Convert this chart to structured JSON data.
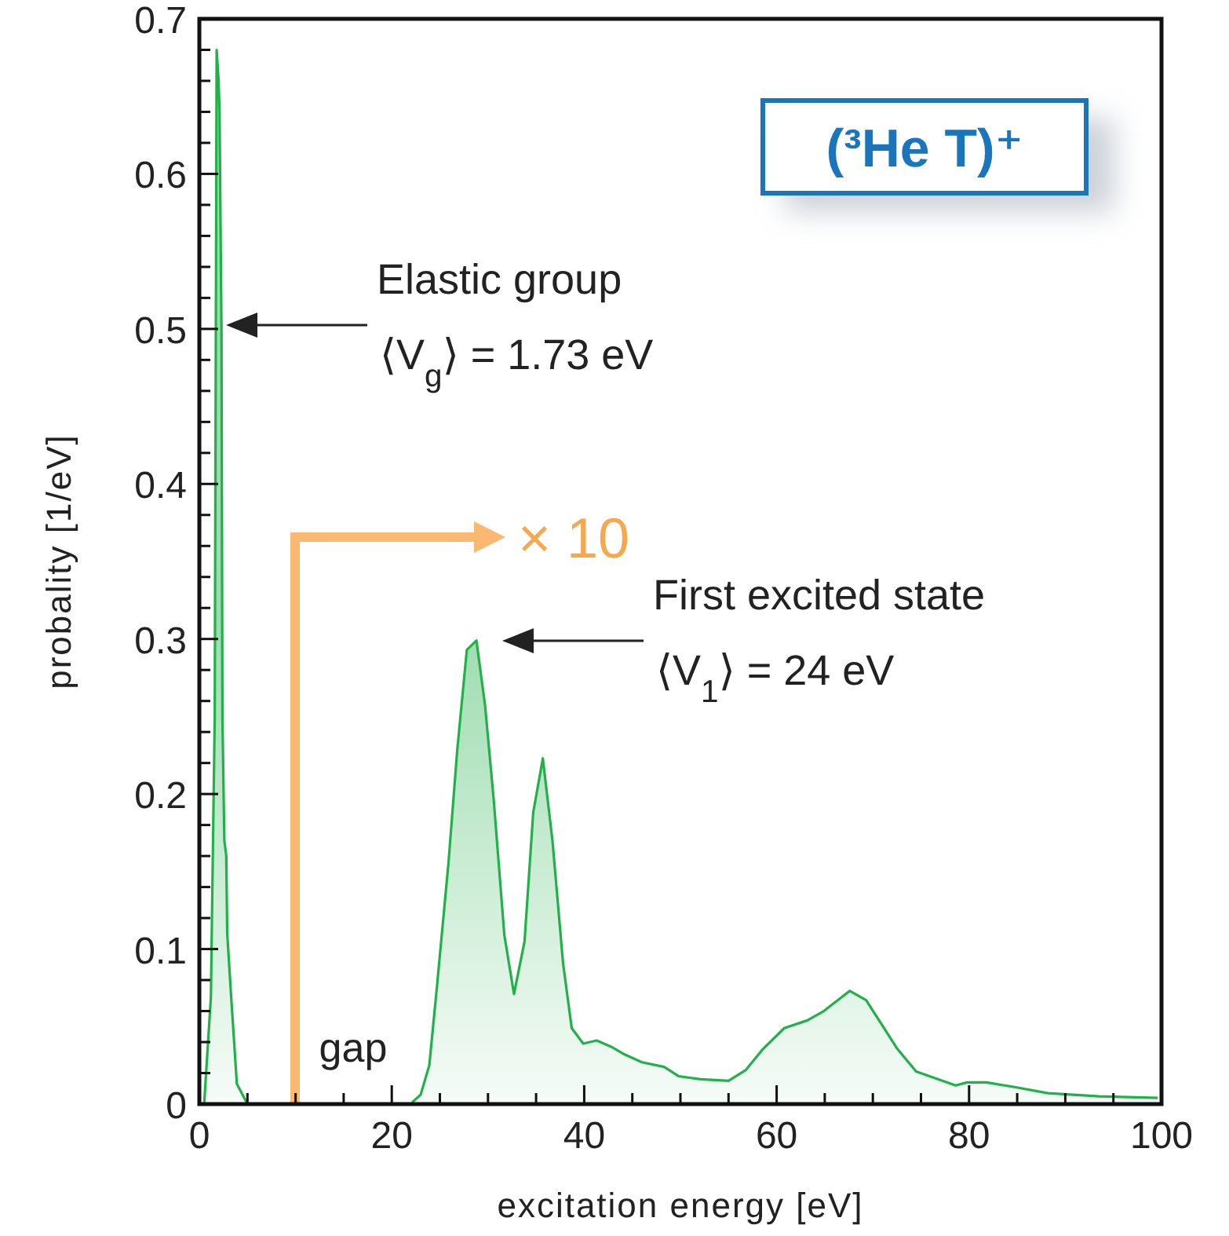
{
  "chart_data": {
    "type": "area",
    "title": "(³He T)⁺",
    "xlabel": "excitation energy  [eV]",
    "ylabel": "probality  [1/eV]",
    "x": [
      0.5,
      1.2,
      1.6,
      1.8,
      2.0,
      2.1,
      2.3,
      2.4,
      2.6,
      2.8,
      2.9,
      3.3,
      3.9,
      5.0,
      10,
      22.1,
      23.0,
      23.9,
      24.7,
      25.9,
      26.8,
      27.8,
      28.8,
      29.7,
      30.6,
      31.7,
      32.7,
      33.8,
      34.7,
      35.7,
      36.7,
      37.8,
      38.7,
      39.9,
      41.3,
      42.8,
      44.2,
      46.0,
      48.3,
      49.8,
      52.1,
      55.0,
      56.8,
      58.5,
      60.8,
      63.2,
      64.9,
      67.6,
      69.3,
      72.5,
      74.5,
      78.6,
      79.8,
      81.8,
      84.7,
      88.2,
      93.5,
      99.6
    ],
    "series": [
      {
        "color": "#22b04a",
        "values": [
          0,
          0.069,
          0.25,
          0.68,
          0.66,
          0.64,
          0.5,
          0.25,
          0.17,
          0.16,
          0.11,
          0.07,
          0.013,
          0,
          null,
          0.001,
          0.006,
          0.025,
          0.076,
          0.156,
          0.228,
          0.293,
          0.299,
          0.257,
          0.196,
          0.109,
          0.071,
          0.105,
          0.188,
          0.223,
          0.17,
          0.091,
          0.049,
          0.039,
          0.041,
          0.037,
          0.032,
          0.027,
          0.024,
          0.018,
          0.016,
          0.015,
          0.022,
          0.035,
          0.049,
          0.054,
          0.06,
          0.073,
          0.067,
          0.036,
          0.021,
          0.012,
          0.014,
          0.014,
          0.011,
          0.007,
          0.005,
          0.004
        ]
      }
    ],
    "xlim": [
      0,
      100
    ],
    "ylim": [
      0,
      0.7
    ],
    "xticks": [
      0,
      {
        "value": 5,
        "label": null
      },
      {
        "value": 10,
        "label": null
      },
      {
        "value": 15,
        "label": null
      },
      20,
      {
        "value": 25,
        "label": null
      },
      {
        "value": 30,
        "label": null
      },
      {
        "value": 35,
        "label": null
      },
      40,
      {
        "value": 45,
        "label": null
      },
      {
        "value": 50,
        "label": null
      },
      {
        "value": 55,
        "label": null
      },
      60,
      {
        "value": 65,
        "label": null
      },
      {
        "value": 70,
        "label": null
      },
      {
        "value": 75,
        "label": null
      },
      80,
      {
        "value": 85,
        "label": null
      },
      {
        "value": 90,
        "label": null
      },
      {
        "value": 95,
        "label": null
      },
      100
    ],
    "yticks": [
      0,
      {
        "value": 0.02,
        "label": null
      },
      {
        "value": 0.04,
        "label": null
      },
      {
        "value": 0.06,
        "label": null
      },
      {
        "value": 0.08,
        "label": null
      },
      0.1,
      {
        "value": 0.12,
        "label": null
      },
      {
        "value": 0.14,
        "label": null
      },
      {
        "value": 0.16,
        "label": null
      },
      {
        "value": 0.18,
        "label": null
      },
      0.2,
      {
        "value": 0.22,
        "label": null
      },
      {
        "value": 0.24,
        "label": null
      },
      {
        "value": 0.26,
        "label": null
      },
      {
        "value": 0.28,
        "label": null
      },
      0.3,
      {
        "value": 0.32,
        "label": null
      },
      {
        "value": 0.34,
        "label": null
      },
      {
        "value": 0.36,
        "label": null
      },
      {
        "value": 0.38,
        "label": null
      },
      0.4,
      {
        "value": 0.42,
        "label": null
      },
      {
        "value": 0.44,
        "label": null
      },
      {
        "value": 0.46,
        "label": null
      },
      {
        "value": 0.48,
        "label": null
      },
      0.5,
      {
        "value": 0.52,
        "label": null
      },
      {
        "value": 0.54,
        "label": null
      },
      {
        "value": 0.56,
        "label": null
      },
      {
        "value": 0.58,
        "label": null
      },
      0.6,
      {
        "value": 0.62,
        "label": null
      },
      {
        "value": 0.64,
        "label": null
      },
      {
        "value": 0.66,
        "label": null
      },
      {
        "value": 0.68,
        "label": null
      },
      0.7
    ],
    "annotations": [
      "Elastic group\n⟨V$_{g}$⟩ = 1.73 eV",
      "First excited state\n⟨V$_{1}$⟩ = 24 eV",
      "× 10",
      "gap"
    ]
  }
}
